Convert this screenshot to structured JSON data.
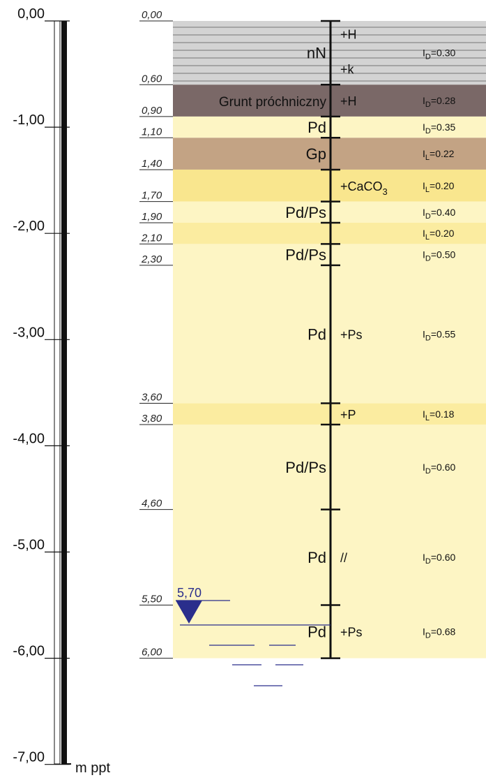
{
  "scale": {
    "labels": [
      "0,00",
      "-1,00",
      "-2,00",
      "-3,00",
      "-4,00",
      "-5,00",
      "-6,00",
      "-7,00"
    ],
    "unit": "m ppt"
  },
  "colors": {
    "anthropogenic": "#d3d3d3",
    "organic": "#7a6867",
    "sand_light": "#fdf5c4",
    "sand_mid": "#fbeca0",
    "sand_strong": "#f9e68e",
    "clay": "#c3a384",
    "water": "#2a2e8c"
  },
  "layers": [
    {
      "top": 0.0,
      "bottom": 0.6,
      "fill": "anthropogenic",
      "hatched": true
    },
    {
      "top": 0.6,
      "bottom": 0.9,
      "fill": "organic"
    },
    {
      "top": 0.9,
      "bottom": 1.1,
      "fill": "sand_light"
    },
    {
      "top": 1.1,
      "bottom": 1.4,
      "fill": "clay"
    },
    {
      "top": 1.4,
      "bottom": 1.7,
      "fill": "sand_strong"
    },
    {
      "top": 1.7,
      "bottom": 1.9,
      "fill": "sand_light"
    },
    {
      "top": 1.9,
      "bottom": 2.1,
      "fill": "sand_mid"
    },
    {
      "top": 2.1,
      "bottom": 3.6,
      "fill": "sand_light"
    },
    {
      "top": 3.6,
      "bottom": 3.8,
      "fill": "sand_mid"
    },
    {
      "top": 3.8,
      "bottom": 6.0,
      "fill": "sand_light"
    }
  ],
  "boundaries": [
    "0,00",
    "0,60",
    "0,90",
    "1,10",
    "1,40",
    "1,70",
    "1,90",
    "2,10",
    "2,30",
    "3,60",
    "3,80",
    "4,60",
    "5,50",
    "6,00"
  ],
  "boundary_values": [
    0.0,
    0.6,
    0.9,
    1.1,
    1.4,
    1.7,
    1.9,
    2.1,
    2.3,
    3.6,
    3.8,
    4.6,
    5.5,
    6.0
  ],
  "soil_labels": [
    {
      "text": "nN",
      "depth": 0.3
    },
    {
      "text": "Grunt próchniczny",
      "depth": 0.75
    },
    {
      "text": "Pd",
      "depth": 1.0
    },
    {
      "text": "Gp",
      "depth": 1.25
    },
    {
      "text": "Pd/Ps",
      "depth": 1.8
    },
    {
      "text": "Pd/Ps",
      "depth": 2.2
    },
    {
      "text": "Pd",
      "depth": 2.95
    },
    {
      "text": "Pd/Ps",
      "depth": 4.2
    },
    {
      "text": "Pd",
      "depth": 5.05
    },
    {
      "text": "Pd",
      "depth": 5.75
    }
  ],
  "admixtures": [
    {
      "text": "+H",
      "depth": 0.12
    },
    {
      "text": "+k",
      "depth": 0.45
    },
    {
      "text": "+H",
      "depth": 0.75
    },
    {
      "text": "+CaCO",
      "sub": "3",
      "depth": 1.55
    },
    {
      "text": "+Ps",
      "depth": 2.95
    },
    {
      "text": "+P",
      "depth": 3.7
    },
    {
      "text": "//",
      "depth": 5.05
    },
    {
      "text": "+Ps",
      "depth": 5.75
    }
  ],
  "indices": [
    {
      "letter": "I",
      "sub": "D",
      "value": "=0.30",
      "depth": 0.3
    },
    {
      "letter": "I",
      "sub": "D",
      "value": "=0.28",
      "depth": 0.75
    },
    {
      "letter": "I",
      "sub": "D",
      "value": "=0.35",
      "depth": 1.0
    },
    {
      "letter": "I",
      "sub": "L",
      "value": "=0.22",
      "depth": 1.25
    },
    {
      "letter": "I",
      "sub": "L",
      "value": "=0.20",
      "depth": 1.55
    },
    {
      "letter": "I",
      "sub": "D",
      "value": "=0.40",
      "depth": 1.8
    },
    {
      "letter": "I",
      "sub": "L",
      "value": "=0.20",
      "depth": 2.0
    },
    {
      "letter": "I",
      "sub": "D",
      "value": "=0.50",
      "depth": 2.2
    },
    {
      "letter": "I",
      "sub": "D",
      "value": "=0.55",
      "depth": 2.95
    },
    {
      "letter": "I",
      "sub": "L",
      "value": "=0.18",
      "depth": 3.7
    },
    {
      "letter": "I",
      "sub": "D",
      "value": "=0.60",
      "depth": 4.2
    },
    {
      "letter": "I",
      "sub": "D",
      "value": "=0.60",
      "depth": 5.05
    },
    {
      "letter": "I",
      "sub": "D",
      "value": "=0.68",
      "depth": 5.75
    }
  ],
  "water_table": {
    "label": "5,70",
    "depth": 5.7
  }
}
